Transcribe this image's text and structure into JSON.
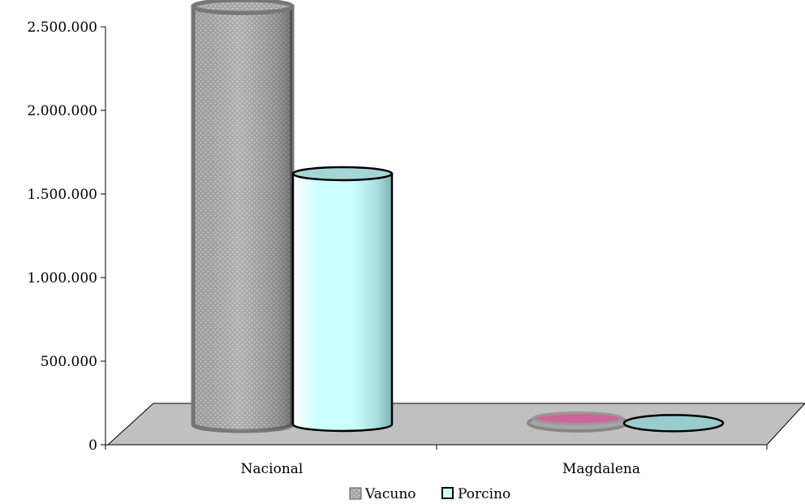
{
  "chart_data": {
    "type": "bar",
    "style": "3d-cylinder",
    "categories": [
      "Nacional",
      "Magdalena"
    ],
    "series": [
      {
        "name": "Vacuno",
        "values": [
          2500000,
          12000
        ],
        "color": "#a6a6a6"
      },
      {
        "name": "Porcino",
        "values": [
          1500000,
          3000
        ],
        "color": "#ccffff"
      }
    ],
    "yticks": [
      "0",
      "500.000",
      "1.000.000",
      "1.500.000",
      "2.000.000",
      "2.500.000"
    ],
    "ytick_values": [
      0,
      500000,
      1000000,
      1500000,
      2000000,
      2500000
    ],
    "ylim": [
      0,
      2500000
    ],
    "legend_position": "bottom",
    "floor_color": "#c0c0c0",
    "magdalena_vacuno_top_color": "#cc6699"
  }
}
